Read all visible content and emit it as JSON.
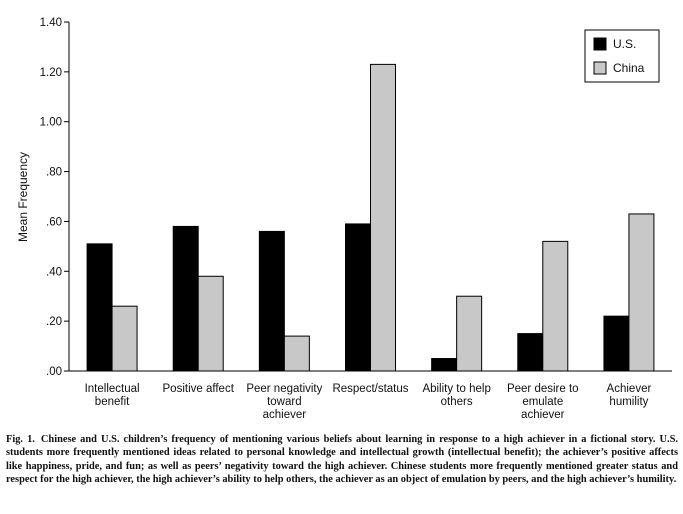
{
  "chart_data": {
    "type": "bar",
    "ylabel": "Mean Frequency",
    "ylim": [
      0,
      1.4
    ],
    "yticks": [
      0,
      0.2,
      0.4,
      0.6,
      0.8,
      1.0,
      1.2,
      1.4
    ],
    "ytick_labels": [
      ".00",
      ".20",
      ".40",
      ".60",
      ".80",
      "1.00",
      "1.20",
      "1.40"
    ],
    "categories": [
      [
        "Intellectual",
        "benefit"
      ],
      [
        "Positive affect"
      ],
      [
        "Peer negativity",
        "toward",
        "achiever"
      ],
      [
        "Respect/status"
      ],
      [
        "Ability to help",
        "others"
      ],
      [
        "Peer desire to",
        "emulate",
        "achiever"
      ],
      [
        "Achiever",
        "humility"
      ]
    ],
    "series": [
      {
        "name": "U.S.",
        "color": "#000000",
        "values": [
          0.51,
          0.58,
          0.56,
          0.59,
          0.05,
          0.15,
          0.22
        ]
      },
      {
        "name": "China",
        "color": "#c8c8c8",
        "values": [
          0.26,
          0.38,
          0.14,
          1.23,
          0.3,
          0.52,
          0.63
        ]
      }
    ],
    "legend": "top-right",
    "grid": false
  },
  "caption": {
    "label": "Fig. 1.",
    "text": "Chinese and U.S. children’s frequency of mentioning various beliefs about learning in response to a high achiever in a fictional story. U.S. students more frequently mentioned ideas related to personal knowledge and intellectual growth (intellectual benefit); the achiever’s positive affects like happiness, pride, and fun; as well as peers’ negativity toward the high achiever. Chinese students more frequently mentioned greater status and respect for the high achiever, the high achiever’s ability to help others, the achiever as an object of emulation by peers, and the high achiever’s humility."
  }
}
